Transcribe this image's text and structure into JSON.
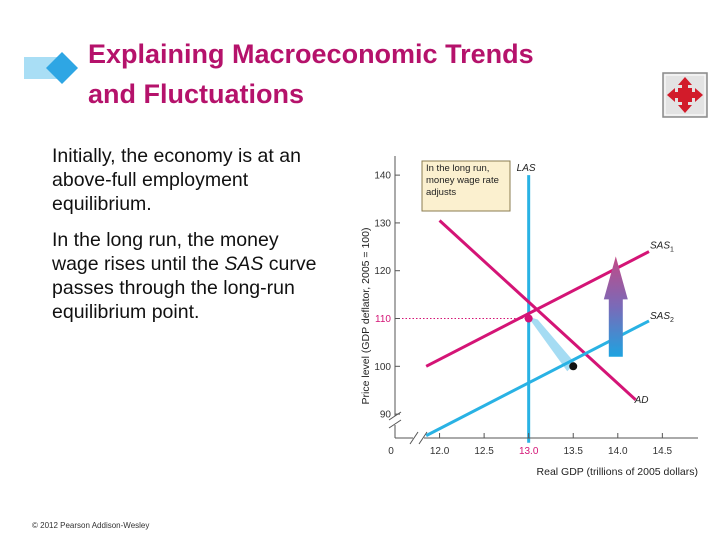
{
  "slide": {
    "title_line1": "Explaining Macroeconomic Trends",
    "title_line2": "and Fluctuations",
    "paragraph1": "Initially, the economy is at an above-full employment equilibrium.",
    "paragraph2_part1": "In the long run, the money wage rises until the ",
    "paragraph2_italic": "SAS",
    "paragraph2_part2": " curve passes through the long-run equilibrium point.",
    "copyright": "© 2012 Pearson Addison-Wesley"
  },
  "colors": {
    "title": "#b5126b",
    "cyan": "#29b2e4",
    "magenta": "#d41476",
    "arrow": "#b2558e",
    "nav_button": "#d21b2a"
  },
  "chart_data": {
    "type": "line",
    "ylabel": "Price level (GDP deflator, 2005 = 100)",
    "xlabel": "Real GDP (trillions of 2005 dollars)",
    "xlim": [
      11.5,
      14.9
    ],
    "ylim": [
      85,
      144
    ],
    "x_ticks": [
      "12.0",
      "12.5",
      "13.0",
      "13.5",
      "14.0",
      "14.5"
    ],
    "y_ticks": [
      "90",
      "100",
      "110",
      "120",
      "130",
      "140"
    ],
    "origin_label": "0",
    "highlight_x_tick": "13.0",
    "highlight_y_tick": "110",
    "annotation": "In the long run, money wage rate adjusts",
    "lines": [
      {
        "name": "LAS",
        "label_main": "LAS",
        "label_sub": "",
        "points": [
          [
            13.0,
            140
          ],
          [
            13.0,
            84
          ]
        ]
      },
      {
        "name": "AD",
        "label_main": "AD",
        "label_sub": "",
        "points": [
          [
            12.0,
            130.5
          ],
          [
            14.2,
            93
          ]
        ]
      },
      {
        "name": "SAS1",
        "label_main": "SAS",
        "label_sub": "1",
        "points": [
          [
            11.85,
            100
          ],
          [
            14.35,
            124
          ]
        ]
      },
      {
        "name": "SAS2",
        "label_main": "SAS",
        "label_sub": "2",
        "points": [
          [
            11.85,
            85.5
          ],
          [
            14.35,
            109.5
          ]
        ]
      }
    ],
    "equilibrium_points": [
      {
        "name": "initial",
        "x": 13.5,
        "y": 100
      },
      {
        "name": "long-run",
        "x": 13.0,
        "y": 110
      }
    ]
  }
}
